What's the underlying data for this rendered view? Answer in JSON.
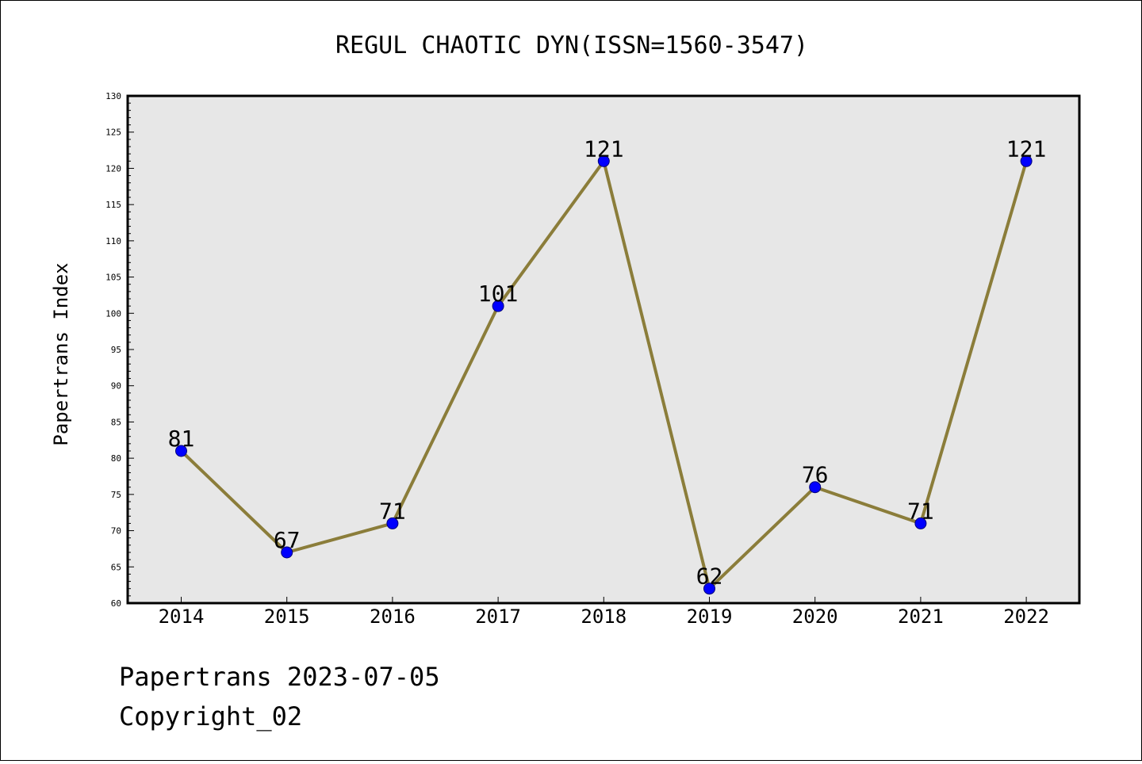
{
  "chart_data": {
    "type": "line",
    "title": "REGUL CHAOTIC DYN(ISSN=1560-3547)",
    "xlabel": "",
    "ylabel": "Papertrans Index",
    "categories": [
      "2014",
      "2015",
      "2016",
      "2017",
      "2018",
      "2019",
      "2020",
      "2021",
      "2022"
    ],
    "series": [
      {
        "values": [
          81,
          67,
          71,
          101,
          121,
          62,
          76,
          71,
          121
        ]
      }
    ],
    "data_labels": [
      "81",
      "67",
      "71",
      "101",
      "121",
      "62",
      "76",
      "71",
      "121"
    ],
    "ylim": [
      60,
      130
    ],
    "yticks": [
      "60",
      "65",
      "70",
      "75",
      "80",
      "85",
      "90",
      "95",
      "100",
      "105",
      "110",
      "115",
      "120",
      "125",
      "130"
    ],
    "grid": false,
    "legend": "none",
    "colors": {
      "line": "#8b7d3a",
      "marker": "#0000ff",
      "plot_background": "#e7e7e7"
    }
  },
  "footer": {
    "line1": "Papertrans 2023-07-05",
    "line2": "Copyright_02"
  }
}
